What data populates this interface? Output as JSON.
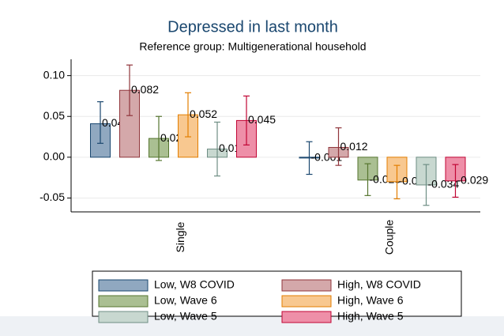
{
  "chart_data": {
    "type": "bar",
    "title": "Depressed in last month",
    "subtitle": "Reference group: Multigenerational household",
    "categories": [
      "Single",
      "Couple"
    ],
    "ylim": [
      -0.067,
      0.12
    ],
    "yticks": [
      {
        "value": 0.1,
        "label": "0.10"
      },
      {
        "value": 0.05,
        "label": "0.05"
      },
      {
        "value": 0,
        "label": "0.00"
      },
      {
        "value": -0.05,
        "label": "-0.05"
      }
    ],
    "grid": true,
    "legend": "bottom",
    "series": [
      {
        "name": "Low, W8 COVID",
        "color": "#90a8c0",
        "edge": "#1a476f",
        "values": [
          0.041,
          -0.001
        ],
        "value_labels": [
          "0.041",
          "-0.001"
        ],
        "lower": [
          0.017,
          -0.021
        ],
        "upper": [
          0.068,
          0.019
        ]
      },
      {
        "name": "High, W8 COVID",
        "color": "#d4a8aa",
        "edge": "#90353b",
        "values": [
          0.082,
          0.012
        ],
        "value_labels": [
          "0.082",
          "0.012"
        ],
        "lower": [
          0.051,
          -0.01
        ],
        "upper": [
          0.113,
          0.036
        ]
      },
      {
        "name": "Low, Wave 6",
        "color": "#aabf92",
        "edge": "#55752f",
        "values": [
          0.023,
          -0.028
        ],
        "value_labels": [
          "0.023",
          "-0.028"
        ],
        "lower": [
          -0.004,
          -0.047
        ],
        "upper": [
          0.05,
          -0.008
        ]
      },
      {
        "name": "High, Wave 6",
        "color": "#f8c890",
        "edge": "#e37e00",
        "values": [
          0.052,
          -0.03
        ],
        "value_labels": [
          "0.052",
          "-0.030"
        ],
        "lower": [
          0.025,
          -0.051
        ],
        "upper": [
          0.079,
          -0.01
        ]
      },
      {
        "name": "Low, Wave 5",
        "color": "#c8d8d0",
        "edge": "#6e8e84",
        "values": [
          0.01,
          -0.034
        ],
        "value_labels": [
          "0.010",
          "-0.034"
        ],
        "lower": [
          -0.023,
          -0.059
        ],
        "upper": [
          0.043,
          -0.009
        ]
      },
      {
        "name": "High, Wave 5",
        "color": "#ee8fa8",
        "edge": "#c10534",
        "values": [
          0.045,
          -0.029
        ],
        "value_labels": [
          "0.045",
          "-0.029"
        ],
        "lower": [
          0.015,
          -0.049
        ],
        "upper": [
          0.075,
          -0.009
        ]
      }
    ]
  }
}
